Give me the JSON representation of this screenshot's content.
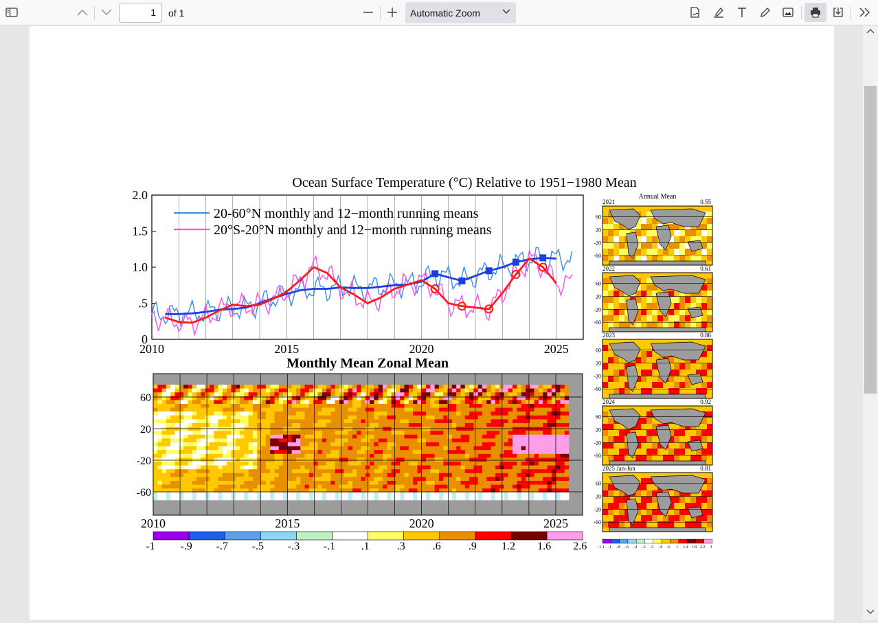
{
  "toolbar": {
    "page_number": "1",
    "page_count_label": "of 1",
    "zoom_label": "Automatic Zoom"
  },
  "figure": {
    "title": "Ocean Surface Temperature (°C) Relative to 1951−1980 Mean",
    "legend_nh": "20-60°N monthly and 12−month running means",
    "legend_tr": "20°S-20°N monthly and 12−month running means",
    "zonal_title": "Monthly Mean Zonal Mean",
    "annual_mean_title": "Annual Mean",
    "y_ticks_top": [
      "2.0",
      "1.5",
      "1.0",
      ".5",
      "0"
    ],
    "x_ticks": [
      "2010",
      "2015",
      "2020",
      "2025"
    ],
    "y_ticks_zonal": [
      "60",
      "20",
      "-20",
      "-60"
    ],
    "colorbar_labels": [
      "-1",
      "-.9",
      "-.7",
      "-.5",
      "-.3",
      "-.1",
      ".1",
      ".3",
      ".6",
      ".9",
      "1.2",
      "1.6",
      "2.6"
    ],
    "colorbar_colors": [
      "#9b00ea",
      "#1f5fe8",
      "#5aa0ea",
      "#8fd4f0",
      "#bff0c4",
      "#ffffff",
      "#ffff66",
      "#ffc800",
      "#e89000",
      "#ff0000",
      "#7a0000",
      "#ff9ee8"
    ],
    "small_colorbar_labels": [
      "-1.1",
      "-1",
      "-.8",
      "-.6",
      "-.4",
      "-.2",
      ".2",
      ".4",
      ".6",
      "1",
      "1.4",
      "1.8",
      "2.2",
      "3"
    ],
    "maps": [
      {
        "year": "2021",
        "value": "0.55"
      },
      {
        "year": "2022",
        "value": "0.61"
      },
      {
        "year": "2023",
        "value": "0.86"
      },
      {
        "year": "2024",
        "value": "0.92"
      },
      {
        "year": "2025 Jan-Jun",
        "value": "0.81"
      }
    ],
    "map_lat_ticks": [
      "60",
      "20",
      "-20",
      "-60"
    ],
    "colors": {
      "nh": "#1a3fe6",
      "nh_monthly": "#3a8ee6",
      "tropics": "#ff1a1a",
      "tropics_monthly": "#ff4df0"
    }
  },
  "chart_data": {
    "type": "line",
    "title": "Ocean Surface Temperature (°C) Relative to 1951−1980 Mean",
    "xlabel": "",
    "ylabel": "",
    "xlim": [
      2010,
      2026
    ],
    "ylim": [
      0,
      2.0
    ],
    "grid": true,
    "legend_position": "top-left",
    "x": [
      2010.5,
      2011,
      2011.5,
      2012,
      2012.5,
      2013,
      2013.5,
      2014,
      2014.5,
      2015,
      2015.5,
      2016,
      2016.5,
      2017,
      2017.5,
      2018,
      2018.5,
      2019,
      2019.5,
      2020,
      2020.5,
      2021,
      2021.5,
      2022,
      2022.5,
      2023,
      2023.5,
      2024,
      2024.5,
      2025
    ],
    "series": [
      {
        "name": "20-60°N monthly and 12−month running means",
        "values": [
          0.35,
          0.35,
          0.36,
          0.38,
          0.41,
          0.42,
          0.44,
          0.5,
          0.57,
          0.63,
          0.68,
          0.7,
          0.7,
          0.72,
          0.71,
          0.71,
          0.73,
          0.75,
          0.76,
          0.8,
          0.91,
          0.86,
          0.81,
          0.88,
          0.95,
          1.0,
          1.07,
          1.11,
          1.13,
          1.12
        ]
      },
      {
        "name": "20°S-20°N monthly and 12−month running means",
        "values": [
          0.3,
          0.24,
          0.23,
          0.3,
          0.4,
          0.48,
          0.46,
          0.48,
          0.56,
          0.66,
          0.82,
          1.0,
          0.92,
          0.72,
          0.62,
          0.5,
          0.58,
          0.7,
          0.76,
          0.82,
          0.7,
          0.5,
          0.46,
          0.44,
          0.42,
          0.64,
          0.9,
          1.12,
          1.0,
          0.78
        ]
      }
    ]
  }
}
